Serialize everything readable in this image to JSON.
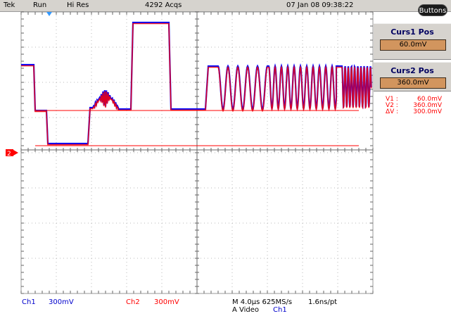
{
  "header": {
    "brand": "Tek",
    "run_state": "Run",
    "acq_mode": "Hi Res",
    "acq_count": "4292 Acqs",
    "datetime": "07 Jan 08 09:38:22",
    "buttons_label": "Buttons"
  },
  "cursors": {
    "curs1_title": "Curs1 Pos",
    "curs1_value": "60.0mV",
    "curs2_title": "Curs2 Pos",
    "curs2_value": "360.0mV"
  },
  "readout": {
    "v1_label": "V1 :",
    "v1_value": "60.0mV",
    "v2_label": "V2 :",
    "v2_value": "360.0mV",
    "dv_label": "ΔV :",
    "dv_value": "300.0mV"
  },
  "channel_marker": "2",
  "bottom": {
    "ch1_label": "Ch1",
    "ch1_scale": "300mV",
    "ch2_label": "Ch2",
    "ch2_scale": "300mV",
    "timebase": "M 4.0µs 625MS/s",
    "resolution": "1.6ns/pt",
    "trigger": "A  Video",
    "trigger_source": "Ch1"
  },
  "colors": {
    "ch1": "#0000ff",
    "ch2": "#ff0000",
    "cursor": "#ff0000",
    "panel_bg": "#d6d3ce",
    "value_box": "#d2955e"
  }
}
